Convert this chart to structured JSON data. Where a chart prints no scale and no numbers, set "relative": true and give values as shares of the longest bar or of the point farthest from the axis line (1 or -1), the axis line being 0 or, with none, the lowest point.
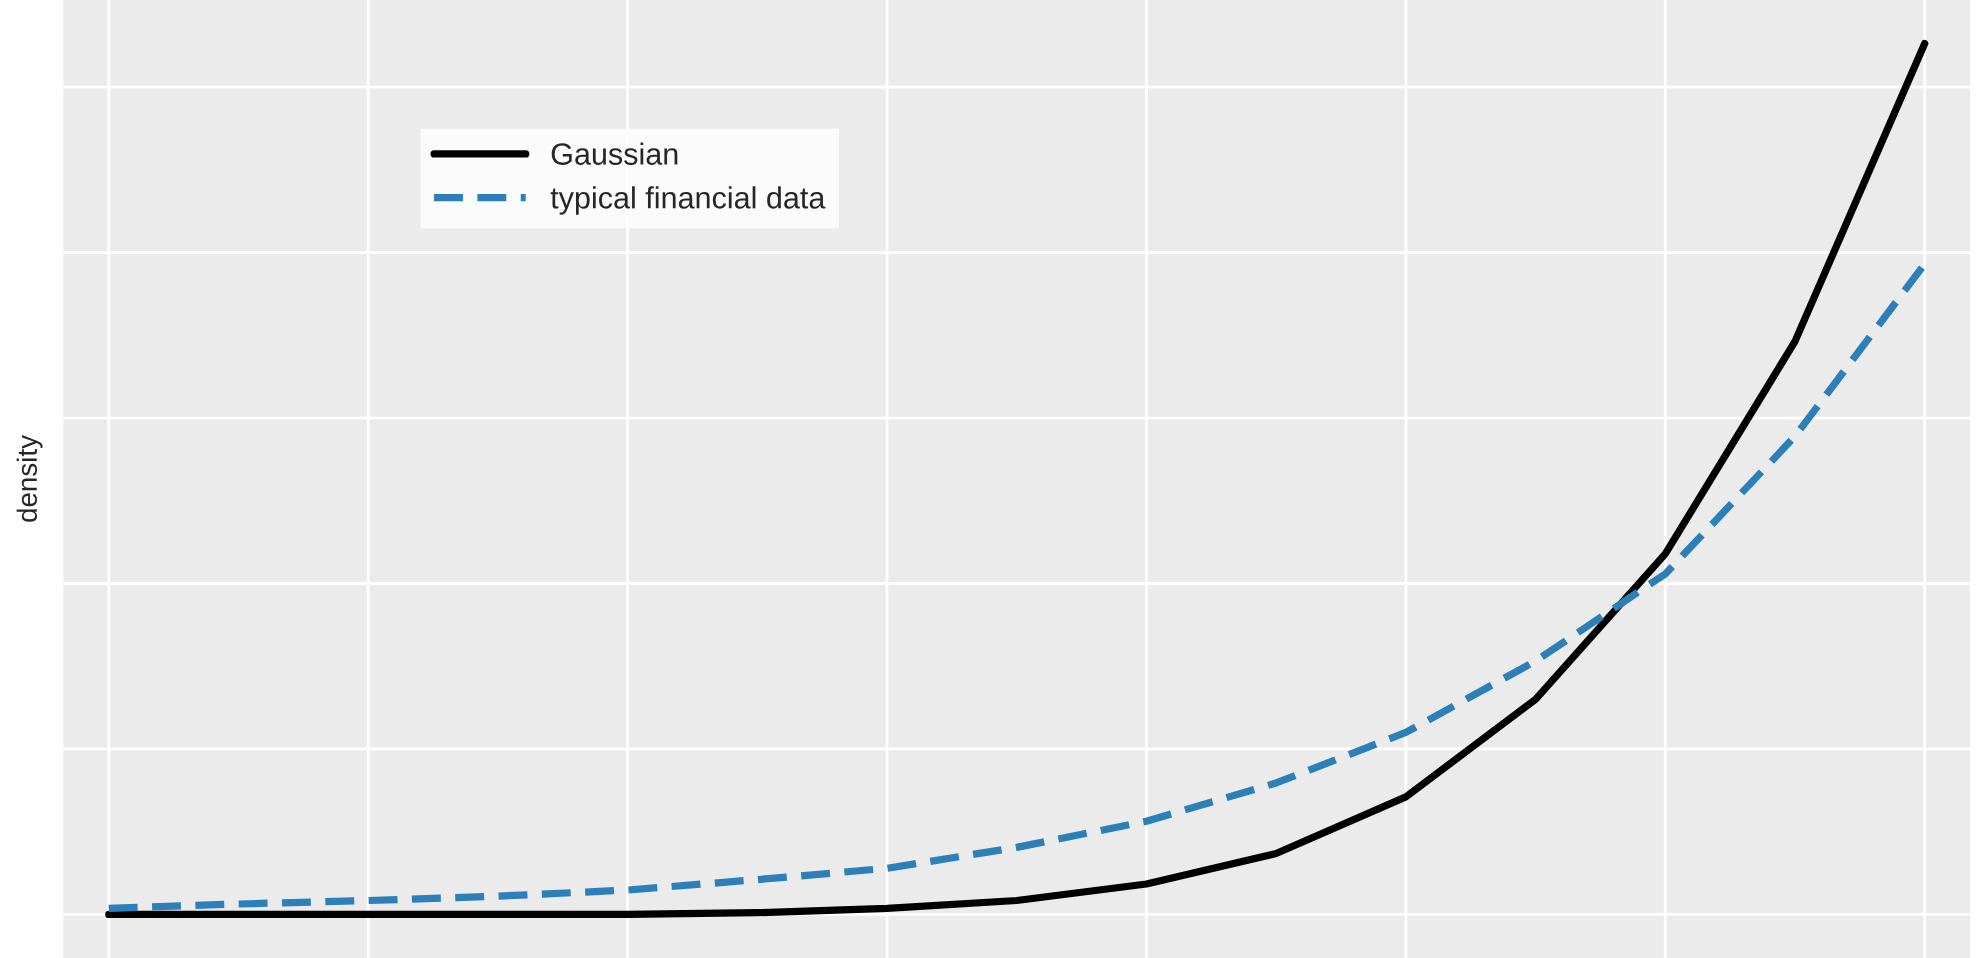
{
  "chart_data": {
    "type": "line",
    "ylabel": "density",
    "relative": true,
    "grid": true,
    "legend": "top left",
    "categories": [
      null,
      null,
      null,
      null,
      null,
      null,
      null,
      null,
      null,
      null,
      null,
      null,
      null,
      null,
      null
    ],
    "series": [
      {
        "name": "Gaussian",
        "color": "#000000",
        "line_style": "solid",
        "values": [
          0,
          0,
          0,
          0,
          0,
          0.002,
          0.007,
          0.016,
          0.035,
          0.07,
          0.135,
          0.247,
          0.414,
          0.658,
          1
        ]
      },
      {
        "name": "typical financial data",
        "color": "#2c7fb8",
        "line_style": "dashed",
        "values": [
          0.007,
          0.012,
          0.016,
          0.021,
          0.028,
          0.04,
          0.053,
          0.077,
          0.107,
          0.151,
          0.209,
          0.291,
          0.391,
          0.549,
          0.747
        ]
      }
    ]
  }
}
